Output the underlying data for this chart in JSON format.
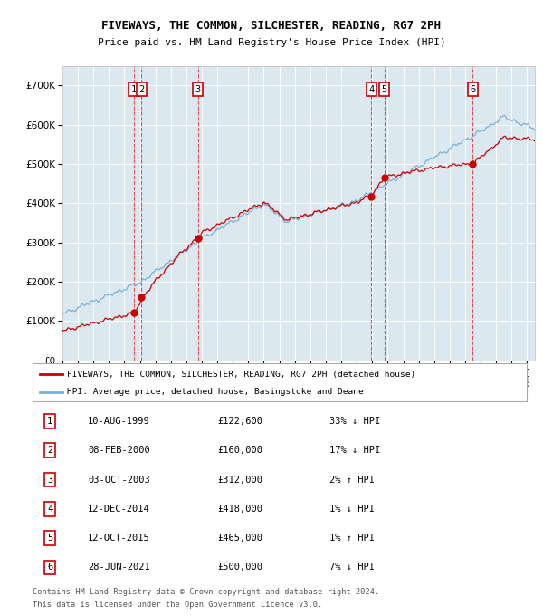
{
  "title1": "FIVEWAYS, THE COMMON, SILCHESTER, READING, RG7 2PH",
  "title2": "Price paid vs. HM Land Registry's House Price Index (HPI)",
  "bg_color": "#dce8f0",
  "red_line_color": "#cc0000",
  "blue_line_color": "#7ab0d4",
  "grid_color": "#ffffff",
  "ylim": [
    0,
    750000
  ],
  "yticks": [
    0,
    100000,
    200000,
    300000,
    400000,
    500000,
    600000,
    700000
  ],
  "xmin": 1995.0,
  "xmax": 2025.5,
  "transactions": [
    {
      "num": 1,
      "date": "10-AUG-1999",
      "price": 122600,
      "year": 1999.61,
      "label": "1"
    },
    {
      "num": 2,
      "date": "08-FEB-2000",
      "price": 160000,
      "year": 2000.1,
      "label": "2"
    },
    {
      "num": 3,
      "date": "03-OCT-2003",
      "price": 312000,
      "year": 2003.75,
      "label": "3"
    },
    {
      "num": 4,
      "date": "12-DEC-2014",
      "price": 418000,
      "year": 2014.95,
      "label": "4"
    },
    {
      "num": 5,
      "date": "12-OCT-2015",
      "price": 465000,
      "year": 2015.78,
      "label": "5"
    },
    {
      "num": 6,
      "date": "28-JUN-2021",
      "price": 500000,
      "year": 2021.49,
      "label": "6"
    }
  ],
  "legend_red": "FIVEWAYS, THE COMMON, SILCHESTER, READING, RG7 2PH (detached house)",
  "legend_blue": "HPI: Average price, detached house, Basingstoke and Deane",
  "footer1": "Contains HM Land Registry data © Crown copyright and database right 2024.",
  "footer2": "This data is licensed under the Open Government Licence v3.0.",
  "table_rows": [
    [
      "1",
      "10-AUG-1999",
      "£122,600",
      "33% ↓ HPI"
    ],
    [
      "2",
      "08-FEB-2000",
      "£160,000",
      "17% ↓ HPI"
    ],
    [
      "3",
      "03-OCT-2003",
      "£312,000",
      "2% ↑ HPI"
    ],
    [
      "4",
      "12-DEC-2014",
      "£418,000",
      "1% ↓ HPI"
    ],
    [
      "5",
      "12-OCT-2015",
      "£465,000",
      "1% ↑ HPI"
    ],
    [
      "6",
      "28-JUN-2021",
      "£500,000",
      "7% ↓ HPI"
    ]
  ]
}
